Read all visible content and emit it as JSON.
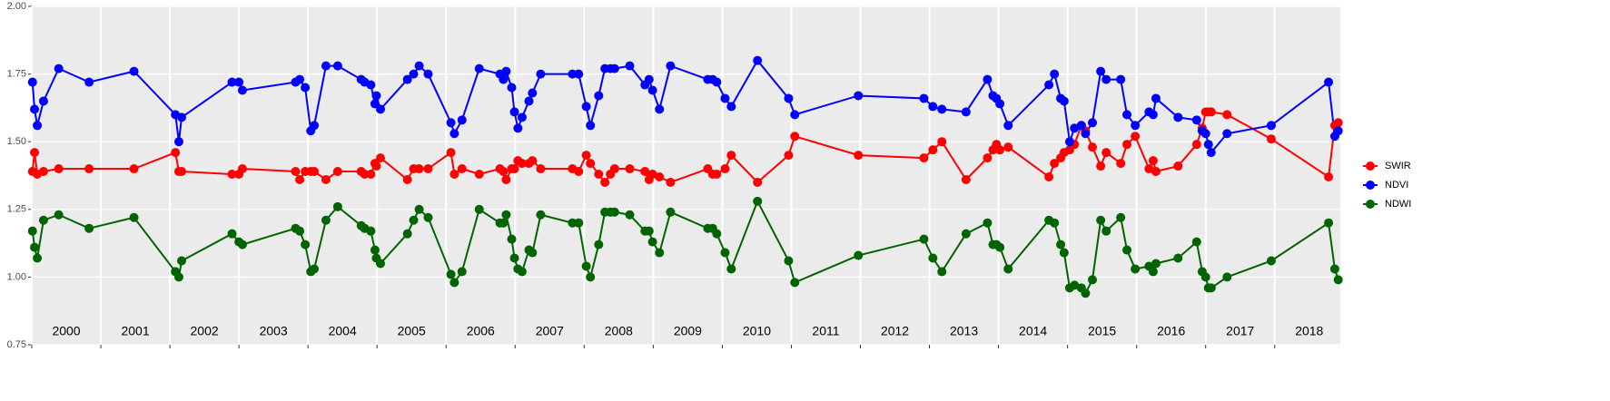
{
  "chart_data": {
    "type": "line",
    "x": [
      2000.01,
      2000.04,
      2000.08,
      2000.17,
      2000.39,
      2000.83,
      2001.48,
      2002.08,
      2002.13,
      2002.17,
      2002.9,
      2003.0,
      2003.05,
      2003.82,
      2003.88,
      2003.96,
      2004.04,
      2004.09,
      2004.26,
      2004.43,
      2004.77,
      2004.82,
      2004.91,
      2004.97,
      2004.99,
      2005.05,
      2005.44,
      2005.53,
      2005.61,
      2005.74,
      2006.07,
      2006.12,
      2006.23,
      2006.48,
      2006.78,
      2006.83,
      2006.87,
      2006.95,
      2006.99,
      2007.04,
      2007.1,
      2007.2,
      2007.25,
      2007.37,
      2007.83,
      2007.92,
      2008.03,
      2008.09,
      2008.21,
      2008.3,
      2008.38,
      2008.44,
      2008.66,
      2008.88,
      2008.94,
      2008.99,
      2009.09,
      2009.25,
      2009.79,
      2009.86,
      2009.92,
      2010.04,
      2010.13,
      2010.51,
      2010.96,
      2011.05,
      2011.97,
      2012.92,
      2013.05,
      2013.18,
      2013.53,
      2013.84,
      2013.92,
      2013.97,
      2014.02,
      2014.14,
      2014.73,
      2014.81,
      2014.9,
      2014.95,
      2015.03,
      2015.1,
      2015.2,
      2015.26,
      2015.36,
      2015.48,
      2015.56,
      2015.77,
      2015.86,
      2015.98,
      2016.18,
      2016.24,
      2016.28,
      2016.6,
      2016.87,
      2016.95,
      2017.0,
      2017.04,
      2017.08,
      2017.31,
      2017.95,
      2018.78,
      2018.87,
      2018.92
    ],
    "series": [
      {
        "name": "SWIR",
        "color": "#ff0000",
        "values": [
          1.39,
          1.46,
          1.38,
          1.39,
          1.4,
          1.4,
          1.4,
          1.46,
          1.39,
          1.39,
          1.38,
          1.38,
          1.4,
          1.39,
          1.36,
          1.39,
          1.39,
          1.39,
          1.36,
          1.39,
          1.39,
          1.38,
          1.38,
          1.42,
          1.41,
          1.44,
          1.36,
          1.4,
          1.4,
          1.4,
          1.46,
          1.38,
          1.4,
          1.38,
          1.4,
          1.39,
          1.36,
          1.4,
          1.4,
          1.43,
          1.42,
          1.42,
          1.43,
          1.4,
          1.4,
          1.39,
          1.45,
          1.42,
          1.38,
          1.35,
          1.38,
          1.4,
          1.4,
          1.39,
          1.36,
          1.38,
          1.37,
          1.35,
          1.4,
          1.38,
          1.38,
          1.4,
          1.45,
          1.35,
          1.45,
          1.52,
          1.45,
          1.44,
          1.47,
          1.5,
          1.36,
          1.44,
          1.47,
          1.49,
          1.47,
          1.48,
          1.37,
          1.42,
          1.44,
          1.46,
          1.47,
          1.49,
          1.56,
          1.54,
          1.48,
          1.41,
          1.46,
          1.42,
          1.49,
          1.52,
          1.4,
          1.43,
          1.39,
          1.41,
          1.49,
          1.55,
          1.61,
          1.61,
          1.61,
          1.6,
          1.51,
          1.37,
          1.56,
          1.57
        ]
      },
      {
        "name": "NDVI",
        "color": "#0000ff",
        "values": [
          1.72,
          1.62,
          1.56,
          1.65,
          1.77,
          1.72,
          1.76,
          1.6,
          1.5,
          1.59,
          1.72,
          1.72,
          1.69,
          1.72,
          1.73,
          1.7,
          1.54,
          1.56,
          1.78,
          1.78,
          1.73,
          1.72,
          1.71,
          1.64,
          1.67,
          1.62,
          1.73,
          1.75,
          1.78,
          1.75,
          1.57,
          1.53,
          1.58,
          1.77,
          1.75,
          1.73,
          1.76,
          1.7,
          1.61,
          1.55,
          1.59,
          1.65,
          1.68,
          1.75,
          1.75,
          1.75,
          1.63,
          1.56,
          1.67,
          1.77,
          1.77,
          1.77,
          1.78,
          1.71,
          1.73,
          1.69,
          1.62,
          1.78,
          1.73,
          1.73,
          1.72,
          1.66,
          1.63,
          1.8,
          1.66,
          1.6,
          1.67,
          1.66,
          1.63,
          1.62,
          1.61,
          1.73,
          1.67,
          1.66,
          1.64,
          1.56,
          1.71,
          1.75,
          1.66,
          1.65,
          1.5,
          1.55,
          1.56,
          1.53,
          1.57,
          1.76,
          1.73,
          1.73,
          1.6,
          1.56,
          1.61,
          1.6,
          1.66,
          1.59,
          1.58,
          1.54,
          1.53,
          1.49,
          1.46,
          1.53,
          1.56,
          1.72,
          1.52,
          1.54
        ]
      },
      {
        "name": "NDWI",
        "color": "#006400",
        "values": [
          1.17,
          1.11,
          1.07,
          1.21,
          1.23,
          1.18,
          1.22,
          1.02,
          1.0,
          1.06,
          1.16,
          1.13,
          1.12,
          1.18,
          1.17,
          1.12,
          1.02,
          1.03,
          1.21,
          1.26,
          1.19,
          1.18,
          1.17,
          1.1,
          1.07,
          1.05,
          1.16,
          1.21,
          1.25,
          1.22,
          1.01,
          0.98,
          1.02,
          1.25,
          1.2,
          1.2,
          1.23,
          1.14,
          1.07,
          1.03,
          1.02,
          1.1,
          1.09,
          1.23,
          1.2,
          1.2,
          1.04,
          1.0,
          1.12,
          1.24,
          1.24,
          1.24,
          1.23,
          1.17,
          1.17,
          1.13,
          1.09,
          1.24,
          1.18,
          1.18,
          1.16,
          1.09,
          1.03,
          1.28,
          1.06,
          0.98,
          1.08,
          1.14,
          1.07,
          1.02,
          1.16,
          1.2,
          1.12,
          1.12,
          1.11,
          1.03,
          1.21,
          1.2,
          1.12,
          1.09,
          0.96,
          0.97,
          0.96,
          0.94,
          0.99,
          1.21,
          1.17,
          1.22,
          1.1,
          1.03,
          1.04,
          1.02,
          1.05,
          1.07,
          1.13,
          1.02,
          1.0,
          0.96,
          0.96,
          1.0,
          1.06,
          1.2,
          1.03,
          0.99
        ]
      }
    ],
    "xlim": [
      2000,
      2018.95
    ],
    "xticks": [
      2000,
      2001,
      2002,
      2003,
      2004,
      2005,
      2006,
      2007,
      2008,
      2009,
      2010,
      2011,
      2012,
      2013,
      2014,
      2015,
      2016,
      2017,
      2018
    ],
    "period_labels": [
      "2000",
      "2001",
      "2002",
      "2003",
      "2004",
      "2005",
      "2006",
      "2007",
      "2008",
      "2009",
      "2010",
      "2011",
      "2012",
      "2013",
      "2014",
      "2015",
      "2016",
      "2017",
      "2018"
    ],
    "ylim": [
      0.75,
      2.0
    ],
    "yticks": [
      {
        "value": 0.75,
        "label": "0.75"
      },
      {
        "value": 1.0,
        "label": "1.00"
      },
      {
        "value": 1.25,
        "label": "1.25"
      },
      {
        "value": 1.5,
        "label": "1.50"
      },
      {
        "value": 1.75,
        "label": "1.75"
      },
      {
        "value": 2.0,
        "label": "2.00"
      }
    ],
    "grid": true,
    "legend": "right"
  }
}
